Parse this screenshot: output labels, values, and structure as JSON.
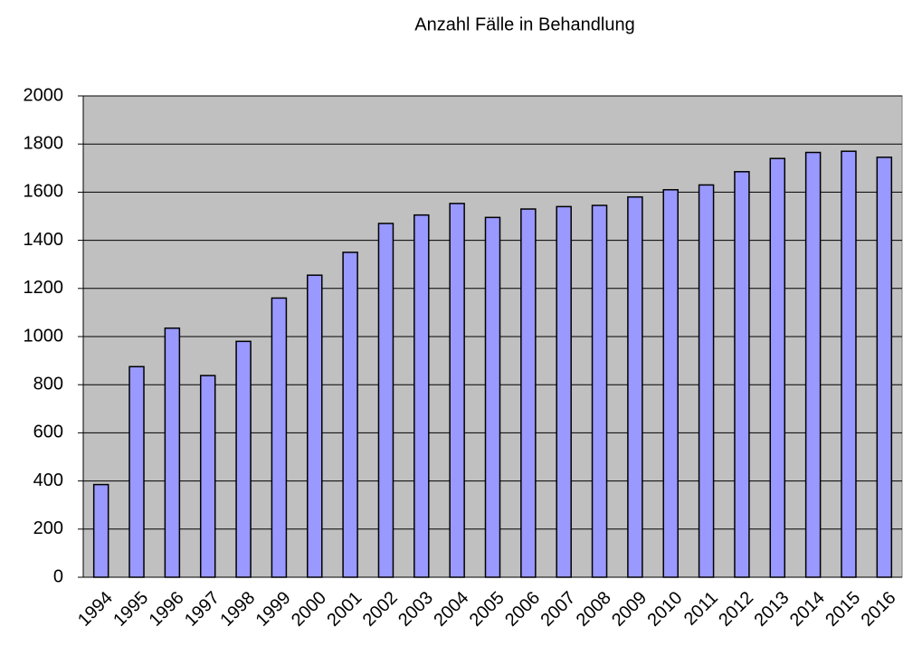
{
  "chart_data": {
    "type": "bar",
    "title": "Anzahl Fälle in Behandlung",
    "categories": [
      "1994",
      "1995",
      "1996",
      "1997",
      "1998",
      "1999",
      "2000",
      "2001",
      "2002",
      "2003",
      "2004",
      "2005",
      "2006",
      "2007",
      "2008",
      "2009",
      "2010",
      "2011",
      "2012",
      "2013",
      "2014",
      "2015",
      "2016"
    ],
    "values": [
      385,
      875,
      1035,
      838,
      980,
      1160,
      1255,
      1350,
      1470,
      1505,
      1553,
      1495,
      1530,
      1540,
      1545,
      1580,
      1610,
      1630,
      1685,
      1740,
      1765,
      1770,
      1745
    ],
    "color": "#9999ff",
    "plot_background": "#c0c0c0",
    "ylim": [
      0,
      2000
    ],
    "yticks": [
      0,
      200,
      400,
      600,
      800,
      1000,
      1200,
      1400,
      1600,
      1800,
      2000
    ],
    "grid": true
  }
}
